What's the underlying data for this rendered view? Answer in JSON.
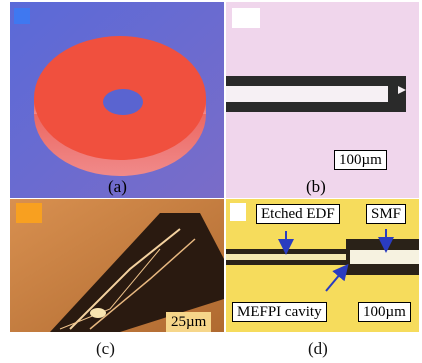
{
  "panels": {
    "a": {
      "label": "(a)",
      "square_color": "#3f78f0",
      "background": "#5e6ed8",
      "ring_color": "#ee5240"
    },
    "b": {
      "label": "(b)",
      "scale_bar": "100µm",
      "square_color": "#ffffff",
      "background": "#f0d4ea"
    },
    "c": {
      "caption": "(c)",
      "scale_bar": "25µm",
      "square_color": "#f8a020",
      "background": "#c87a3a"
    },
    "d": {
      "caption": "(d)",
      "scale_bar": "100µm",
      "square_color": "#ffffff",
      "background": "#f6dc5c",
      "annotations": {
        "etched_edf": "Etched EDF",
        "smf": "SMF",
        "mefpi_cavity": "MEFPI cavity"
      }
    }
  }
}
